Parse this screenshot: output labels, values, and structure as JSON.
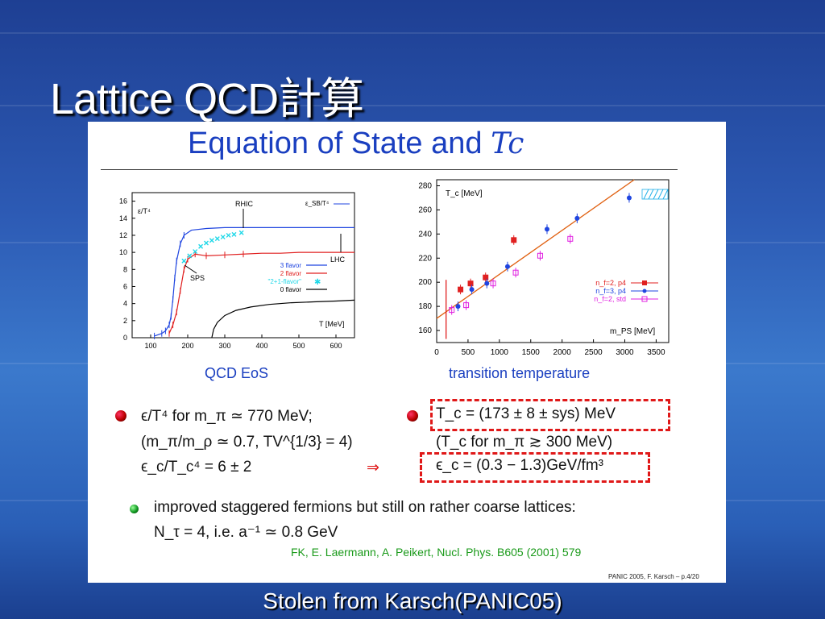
{
  "slide": {
    "title": "Lattice QCD計算",
    "footer": "Stolen from Karsch(PANIC05)"
  },
  "panel": {
    "title_prefix": "Equation of State and ",
    "title_symbol": "Tc",
    "eos_caption": "QCD EoS",
    "tc_caption": "transition temperature",
    "bullet1_line1": "ϵ/T⁴ for m_π ≃ 770 MeV;",
    "bullet1_line2": "(m_π/m_ρ ≃ 0.7, TV^{1/3} = 4)",
    "bullet1_line3": "ϵ_c/T_c⁴ = 6 ± 2",
    "arrow": "⇒",
    "bullet2_line1": "T_c = (173 ± 8 ± sys) MeV",
    "bullet2_line2": "(T_c for m_π ≳ 300 MeV)",
    "bullet2_line3": "ϵ_c = (0.3 − 1.3)GeV/fm³",
    "bullet3_line1": "improved staggered fermions but still on rather coarse lattices:",
    "bullet3_line2": "N_τ = 4, i.e. a⁻¹ ≃ 0.8 GeV",
    "reference": "FK, E. Laermann, A. Peikert, Nucl. Phys. B605 (2001) 579",
    "page_tag": "PANIC 2005, F. Karsch – p.4/20"
  },
  "chart_data": [
    {
      "type": "line",
      "xlabel": "T [MeV]",
      "ylabel": "ε/T⁴",
      "xlim": [
        50,
        650
      ],
      "ylim": [
        0,
        17
      ],
      "xticks": [
        100,
        200,
        300,
        400,
        500,
        600
      ],
      "yticks": [
        0,
        2,
        4,
        6,
        8,
        10,
        12,
        14,
        16
      ],
      "annotations": [
        "RHIC",
        "LHC",
        "SPS",
        "ε_SB/T⁴"
      ],
      "legend": "right",
      "series": [
        {
          "name": "3 flavor",
          "color": "#1f45e0",
          "x": [
            110,
            130,
            140,
            150,
            155,
            160,
            165,
            170,
            180,
            190,
            210,
            250,
            300,
            350,
            400,
            450,
            500,
            540,
            600,
            650
          ],
          "y": [
            0.2,
            0.5,
            0.8,
            1.5,
            2.5,
            4.5,
            7.0,
            9.0,
            11.0,
            12.0,
            12.6,
            12.8,
            12.9,
            12.9,
            12.9,
            12.9,
            12.9,
            12.9,
            12.9,
            12.9
          ]
        },
        {
          "name": "2 flavor",
          "color": "#e02020",
          "x": [
            150,
            160,
            170,
            180,
            190,
            200,
            220,
            250,
            300,
            350,
            400,
            450,
            500,
            540,
            600,
            650
          ],
          "y": [
            0.5,
            1.5,
            3.0,
            5.5,
            8.0,
            9.2,
            9.8,
            9.6,
            9.7,
            9.8,
            9.9,
            9.9,
            10.0,
            10.0,
            10.0,
            10.0
          ]
        },
        {
          "name": "\"2+1-flavor\"",
          "color": "#20d8e8",
          "x": [
            190,
            205,
            220,
            235,
            250,
            265,
            280,
            295,
            310,
            325,
            345
          ],
          "y": [
            9.0,
            9.6,
            10.1,
            10.7,
            11.1,
            11.4,
            11.6,
            11.8,
            12.0,
            12.1,
            12.3
          ]
        },
        {
          "name": "0 flavor",
          "color": "#000000",
          "x": [
            265,
            270,
            280,
            300,
            330,
            370,
            420,
            480,
            540,
            600,
            650
          ],
          "y": [
            0.0,
            1.0,
            1.8,
            2.6,
            3.2,
            3.6,
            3.9,
            4.1,
            4.2,
            4.3,
            4.4
          ]
        }
      ]
    },
    {
      "type": "scatter",
      "xlabel": "m_PS [MeV]",
      "ylabel": "T_c [MeV]",
      "xlim": [
        0,
        3700
      ],
      "ylim": [
        150,
        285
      ],
      "xticks": [
        0,
        500,
        1000,
        1500,
        2000,
        2500,
        3000,
        3500
      ],
      "yticks": [
        160,
        180,
        200,
        220,
        240,
        260,
        280
      ],
      "legend": "right",
      "series": [
        {
          "name": "n_f=2, p4",
          "color": "#e02020",
          "marker": "square",
          "x": [
            380,
            540,
            780,
            1230
          ],
          "y": [
            194,
            199,
            204,
            235
          ]
        },
        {
          "name": "n_f=3, p4",
          "color": "#1f45e0",
          "marker": "circle",
          "x": [
            340,
            560,
            800,
            1130,
            1760,
            2240,
            3070
          ],
          "y": [
            180,
            194,
            199,
            213,
            244,
            253,
            270
          ]
        },
        {
          "name": "n_f=2, std",
          "color": "#e020e0",
          "marker": "open-square",
          "x": [
            240,
            470,
            900,
            1260,
            1650,
            2130
          ],
          "y": [
            177,
            181,
            199,
            208,
            222,
            236
          ]
        }
      ],
      "fit_line": {
        "color": "#e06010",
        "x": [
          0,
          3150
        ],
        "y": [
          170,
          285
        ]
      }
    }
  ]
}
